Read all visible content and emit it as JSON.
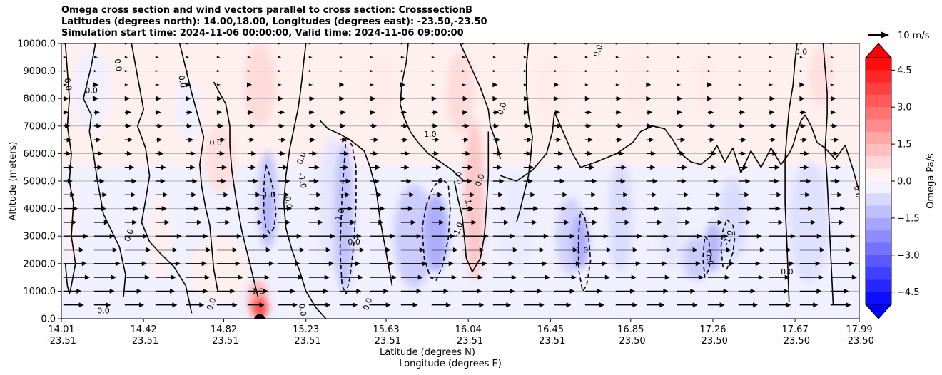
{
  "chart_data": {
    "type": "heatmap",
    "title_lines": [
      "Omega cross section and wind vectors parallel to cross section: CrosssectionB",
      "Latitudes (degrees north): 14.00,18.00, Longitudes (degrees east): -23.50,-23.50",
      "Simulation start time: 2024-11-06 00:00:00, Valid time: 2024-11-06 09:00:00"
    ],
    "ylabel": "Altitude (meters)",
    "xlabel_lines": [
      "Latitude (degrees N)",
      "Longitude (degrees E)"
    ],
    "ylim": [
      0,
      10000
    ],
    "yticks": [
      "0.0",
      "1000.0",
      "2000.0",
      "3000.0",
      "4000.0",
      "5000.0",
      "6000.0",
      "7000.0",
      "8000.0",
      "9000.0",
      "10000.0"
    ],
    "xtick_lat": [
      "14.01",
      "14.42",
      "14.82",
      "15.23",
      "15.63",
      "16.04",
      "16.45",
      "16.85",
      "17.26",
      "17.67",
      "17.99"
    ],
    "xtick_lon": [
      "-23.51",
      "-23.51",
      "-23.51",
      "-23.51",
      "-23.51",
      "-23.51",
      "-23.51",
      "-23.50",
      "-23.50",
      "-23.50",
      "-23.50"
    ],
    "grid": "horizontal",
    "colorbar": {
      "label": "Omega Pa/s",
      "range": [
        -5,
        5
      ],
      "ticks": [
        "4.5",
        "3.0",
        "1.5",
        "0.0",
        "−1.5",
        "−3.0",
        "−4.5"
      ],
      "tick_values": [
        4.5,
        3.0,
        1.5,
        0.0,
        -1.5,
        -3.0,
        -4.5
      ],
      "extend": "both",
      "colors": {
        "max": "#ff0000",
        "zero": "#ffffff",
        "min": "#0000ff"
      }
    },
    "quiver_key": {
      "label": "10 m/s"
    },
    "contour_labels": [
      "0.0",
      "1.0",
      "-1.0"
    ],
    "omega_regions": [
      {
        "x": 14.06,
        "y": 3500,
        "rx": 0.03,
        "ry": 1500,
        "value": 0.3
      },
      {
        "x": 14.16,
        "y": 8300,
        "rx": 0.09,
        "ry": 1500,
        "value": -0.3
      },
      {
        "x": 14.5,
        "y": 3000,
        "rx": 0.06,
        "ry": 1500,
        "value": 0.3
      },
      {
        "x": 14.52,
        "y": 8500,
        "rx": 0.06,
        "ry": 1400,
        "value": 0.3
      },
      {
        "x": 14.64,
        "y": 7600,
        "rx": 0.06,
        "ry": 1100,
        "value": -0.3
      },
      {
        "x": 14.8,
        "y": 1800,
        "rx": 0.15,
        "ry": 1200,
        "value": 0.3
      },
      {
        "x": 14.8,
        "y": 5800,
        "rx": 0.08,
        "ry": 1200,
        "value": 0.6
      },
      {
        "x": 15.0,
        "y": 8500,
        "rx": 0.08,
        "ry": 1500,
        "value": 0.7
      },
      {
        "x": 15.04,
        "y": 4300,
        "rx": 0.05,
        "ry": 1800,
        "value": -1.1
      },
      {
        "x": 15.04,
        "y": 3800,
        "rx": 0.015,
        "ry": 1000,
        "value": -1.7
      },
      {
        "x": 14.99,
        "y": 700,
        "rx": 0.05,
        "ry": 700,
        "value": 1.5
      },
      {
        "x": 15.0,
        "y": 400,
        "rx": 0.04,
        "ry": 400,
        "value": 3.5
      },
      {
        "x": 15.23,
        "y": 8800,
        "rx": 0.05,
        "ry": 1200,
        "value": 0.3
      },
      {
        "x": 15.36,
        "y": 4200,
        "rx": 0.07,
        "ry": 2400,
        "value": -0.5
      },
      {
        "x": 15.42,
        "y": 3700,
        "rx": 0.05,
        "ry": 2700,
        "value": -1.2
      },
      {
        "x": 15.6,
        "y": 8300,
        "rx": 0.09,
        "ry": 1400,
        "value": 0.4
      },
      {
        "x": 15.77,
        "y": 3000,
        "rx": 0.1,
        "ry": 1900,
        "value": -1.0
      },
      {
        "x": 15.88,
        "y": 3100,
        "rx": 0.06,
        "ry": 1400,
        "value": -1.6
      },
      {
        "x": 16.0,
        "y": 8200,
        "rx": 0.07,
        "ry": 1500,
        "value": 0.7
      },
      {
        "x": 16.07,
        "y": 4300,
        "rx": 0.05,
        "ry": 2900,
        "value": 1.1
      },
      {
        "x": 16.28,
        "y": 3500,
        "rx": 0.08,
        "ry": 1800,
        "value": -0.4
      },
      {
        "x": 16.46,
        "y": 8400,
        "rx": 0.1,
        "ry": 1300,
        "value": 0.4
      },
      {
        "x": 16.55,
        "y": 3000,
        "rx": 0.07,
        "ry": 1400,
        "value": -0.9
      },
      {
        "x": 16.6,
        "y": 2800,
        "rx": 0.04,
        "ry": 1000,
        "value": -1.6
      },
      {
        "x": 16.8,
        "y": 3700,
        "rx": 0.06,
        "ry": 2000,
        "value": -0.7
      },
      {
        "x": 16.87,
        "y": 8500,
        "rx": 0.06,
        "ry": 1500,
        "value": 0.4
      },
      {
        "x": 17.05,
        "y": 3000,
        "rx": 0.06,
        "ry": 1200,
        "value": -0.5
      },
      {
        "x": 17.18,
        "y": 2200,
        "rx": 0.07,
        "ry": 800,
        "value": -1.0
      },
      {
        "x": 17.26,
        "y": 2600,
        "rx": 0.04,
        "ry": 900,
        "value": -1.4
      },
      {
        "x": 17.36,
        "y": 3600,
        "rx": 0.07,
        "ry": 1500,
        "value": -0.7
      },
      {
        "x": 17.22,
        "y": 8500,
        "rx": 0.06,
        "ry": 1200,
        "value": 0.4
      },
      {
        "x": 17.66,
        "y": 8300,
        "rx": 0.07,
        "ry": 1300,
        "value": 0.3
      },
      {
        "x": 17.74,
        "y": 3500,
        "rx": 0.1,
        "ry": 2200,
        "value": -0.6
      },
      {
        "x": 17.8,
        "y": 8800,
        "rx": 0.06,
        "ry": 1100,
        "value": 0.6
      },
      {
        "x": 17.98,
        "y": 3500,
        "rx": 0.02,
        "ry": 1800,
        "value": 0.3
      }
    ],
    "zero_contours": [
      {
        "x": [
          14.03,
          14.04,
          14.05,
          14.04,
          14.06,
          14.05,
          14.07,
          14.06,
          14.08,
          14.06,
          14.05,
          14.04,
          14.03
        ],
        "y": [
          10000,
          9000,
          8000,
          7000,
          6000,
          5000,
          4200,
          3000,
          2000,
          1200,
          900,
          1200,
          2000
        ]
      },
      {
        "x": [
          14.18,
          14.16,
          14.14,
          14.12,
          14.16,
          14.15,
          14.17,
          14.19,
          14.22,
          14.3,
          14.33,
          14.32
        ],
        "y": [
          10000,
          9200,
          8600,
          8000,
          7400,
          6800,
          6000,
          5000,
          3800,
          2600,
          1600,
          800
        ]
      },
      {
        "x": [
          14.36,
          14.38,
          14.4,
          14.42,
          14.39,
          14.43,
          14.45,
          14.43,
          14.41,
          14.45,
          14.5,
          14.57,
          14.63,
          14.66
        ],
        "y": [
          10000,
          9200,
          8400,
          7600,
          7000,
          6200,
          5200,
          4300,
          3500,
          2800,
          2400,
          1900,
          1200,
          200
        ]
      },
      {
        "x": [
          14.6,
          14.62,
          14.64,
          14.66,
          14.69,
          14.72,
          14.7,
          14.71,
          14.73,
          14.75,
          14.76,
          14.77,
          14.79
        ],
        "y": [
          10000,
          9400,
          8800,
          8200,
          7400,
          6600,
          5600,
          4800,
          4000,
          3400,
          2600,
          1800,
          1000
        ]
      },
      {
        "x": [
          14.77,
          14.8,
          14.83,
          14.85,
          14.85,
          14.86,
          14.88,
          14.91,
          14.95,
          14.99
        ],
        "y": [
          8600,
          8200,
          7800,
          7000,
          6300,
          5400,
          4400,
          3200,
          2000,
          800
        ]
      },
      {
        "x": [
          15.23,
          15.22,
          15.21,
          15.2,
          15.19,
          15.17,
          15.15,
          15.13,
          15.12,
          15.13,
          15.16,
          15.2,
          15.23,
          15.28,
          15.33
        ],
        "y": [
          10000,
          9400,
          8700,
          8100,
          7600,
          6900,
          6200,
          5200,
          4200,
          3300,
          2500,
          1700,
          1000,
          400,
          0
        ]
      },
      {
        "x": [
          15.3,
          15.34,
          15.4,
          15.45,
          15.52,
          15.55,
          15.58,
          15.6,
          15.63,
          15.66
        ],
        "y": [
          7200,
          6900,
          6700,
          6500,
          6100,
          5500,
          4700,
          3600,
          2400,
          1200
        ]
      },
      {
        "x": [
          15.74,
          15.73,
          15.71,
          15.7,
          15.72,
          15.75,
          15.79,
          15.84,
          15.9,
          15.96,
          16.02
        ],
        "y": [
          10000,
          9300,
          8600,
          7800,
          7300,
          6800,
          6400,
          6000,
          5700,
          5400,
          5000
        ]
      },
      {
        "x": [
          15.97,
          15.99,
          16.01,
          16.02,
          16.03,
          16.06,
          16.1,
          16.12,
          16.13,
          16.14,
          16.14
        ],
        "y": [
          5000,
          4300,
          3700,
          3000,
          2200,
          1700,
          2200,
          3000,
          4000,
          5200,
          6800
        ]
      },
      {
        "x": [
          16.0,
          16.05,
          16.1,
          16.14,
          16.15,
          16.18,
          16.2
        ],
        "y": [
          10000,
          9200,
          8400,
          7600,
          7000,
          6400,
          5800
        ]
      },
      {
        "x": [
          16.34,
          16.33,
          16.33,
          16.34,
          16.36,
          16.35,
          16.34,
          16.32,
          16.3,
          16.28
        ],
        "y": [
          10000,
          9200,
          8400,
          7400,
          6600,
          5800,
          5200,
          4600,
          4000,
          3500
        ]
      },
      {
        "x": [
          16.2,
          16.28,
          16.36,
          16.43,
          16.46,
          16.47,
          16.5,
          16.53,
          16.56,
          16.6
        ],
        "y": [
          5200,
          5000,
          5400,
          6000,
          6800,
          7500,
          7000,
          6500,
          6000,
          5500
        ]
      },
      {
        "x": [
          16.6,
          16.68,
          16.78,
          16.86,
          16.9,
          16.96,
          17.02,
          17.06,
          17.1,
          17.15,
          17.2
        ],
        "y": [
          5500,
          5700,
          6000,
          6400,
          6800,
          7000,
          6900,
          6500,
          6000,
          5700,
          5600
        ]
      },
      {
        "x": [
          17.2,
          17.25,
          17.28,
          17.32,
          17.36,
          17.4,
          17.45,
          17.5,
          17.55,
          17.6,
          17.64
        ],
        "y": [
          5600,
          5900,
          6300,
          5700,
          6200,
          5300,
          6100,
          5500,
          6200,
          5600,
          6000
        ]
      },
      {
        "x": [
          17.64,
          17.66,
          17.68,
          17.7,
          17.72,
          17.75,
          17.78,
          17.82,
          17.87,
          17.92,
          17.96,
          17.99
        ],
        "y": [
          6000,
          6300,
          6800,
          7200,
          7400,
          7000,
          6400,
          6200,
          5800,
          6300,
          5400,
          4600
        ]
      },
      {
        "x": [
          17.68,
          17.67,
          17.66,
          17.64,
          17.63,
          17.62,
          17.62,
          17.63,
          17.64
        ],
        "y": [
          10000,
          9400,
          8500,
          7600,
          6800,
          5800,
          4200,
          2600,
          600
        ]
      },
      {
        "x": [
          17.81,
          17.82,
          17.83,
          17.83,
          17.82,
          17.83,
          17.84,
          17.85,
          17.86
        ],
        "y": [
          10000,
          9100,
          8200,
          7400,
          6200,
          5000,
          3500,
          2000,
          500
        ]
      }
    ],
    "dashed_contours": [
      {
        "x": [
          15.03,
          15.05,
          15.07,
          15.08,
          15.07,
          15.05,
          15.03,
          15.02,
          15.02,
          15.03
        ],
        "y": [
          5600,
          5200,
          4600,
          3800,
          3300,
          3100,
          3300,
          3900,
          4800,
          5600
        ]
      },
      {
        "x": [
          15.43,
          15.46,
          15.48,
          15.48,
          15.47,
          15.45,
          15.43,
          15.41,
          15.4,
          15.41,
          15.43
        ],
        "y": [
          6600,
          6300,
          5500,
          4200,
          2800,
          1500,
          900,
          1200,
          2500,
          4500,
          6600
        ]
      },
      {
        "x": [
          15.83,
          15.86,
          15.9,
          15.94,
          15.95,
          15.94,
          15.91,
          15.88,
          15.85,
          15.82,
          15.81,
          15.83
        ],
        "y": [
          4100,
          4700,
          5100,
          4900,
          4000,
          2900,
          1900,
          1400,
          1500,
          2200,
          3300,
          4100
        ]
      },
      {
        "x": [
          16.6,
          16.62,
          16.64,
          16.65,
          16.63,
          16.61,
          16.59,
          16.59,
          16.6
        ],
        "y": [
          3900,
          3700,
          3000,
          2100,
          1200,
          1000,
          1800,
          3000,
          3900
        ]
      },
      {
        "x": [
          17.22,
          17.24,
          17.25,
          17.24,
          17.22,
          17.21,
          17.22
        ],
        "y": [
          3000,
          2800,
          2300,
          1800,
          1500,
          2200,
          3000
        ]
      },
      {
        "x": [
          17.33,
          17.36,
          17.37,
          17.36,
          17.33,
          17.31,
          17.3,
          17.31,
          17.33
        ],
        "y": [
          3600,
          3400,
          3000,
          2400,
          1800,
          1900,
          2600,
          3200,
          3600
        ]
      }
    ]
  }
}
